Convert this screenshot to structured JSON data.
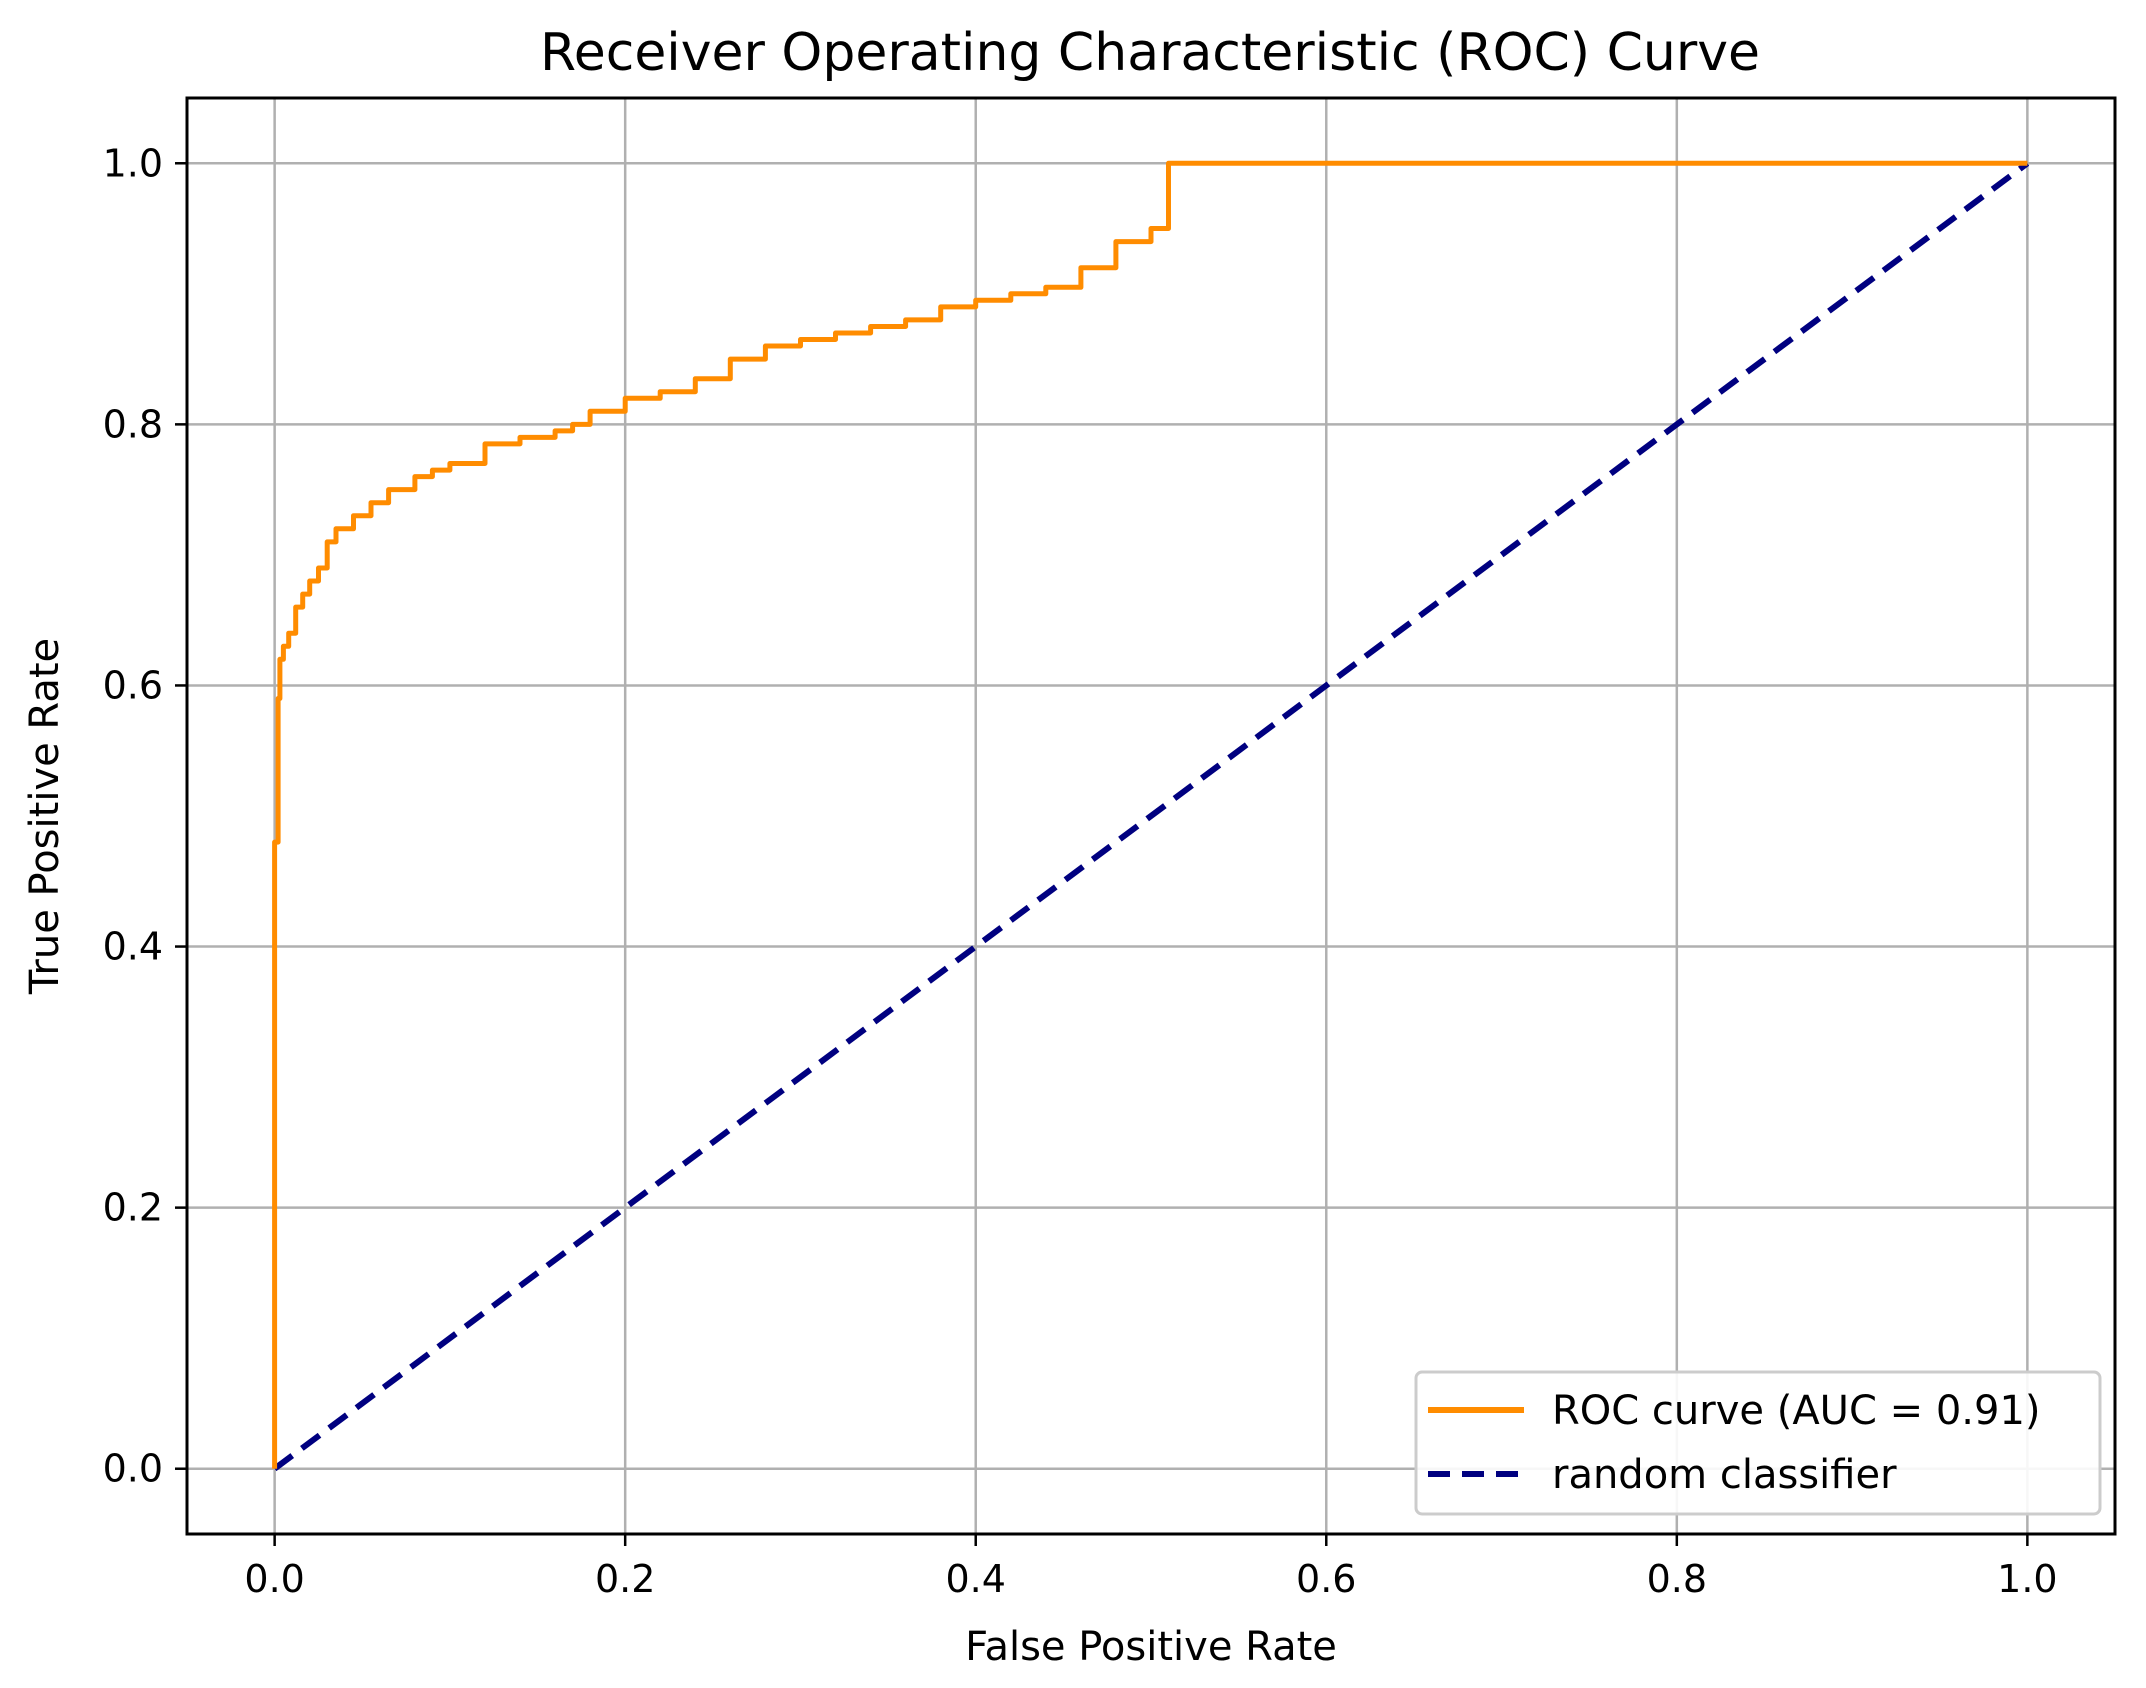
{
  "chart_data": {
    "type": "line",
    "title": "Receiver Operating Characteristic (ROC) Curve",
    "xlabel": "False Positive Rate",
    "ylabel": "True Positive Rate",
    "xlim": [
      -0.05,
      1.05
    ],
    "ylim": [
      -0.05,
      1.05
    ],
    "grid": true,
    "legend_position": "bottom-right",
    "x_ticks": [
      0.0,
      0.2,
      0.4,
      0.6,
      0.8,
      1.0
    ],
    "x_tick_labels": [
      "0.0",
      "0.2",
      "0.4",
      "0.6",
      "0.8",
      "1.0"
    ],
    "y_ticks": [
      0.0,
      0.2,
      0.4,
      0.6,
      0.8,
      1.0
    ],
    "y_tick_labels": [
      "0.0",
      "0.2",
      "0.4",
      "0.6",
      "0.8",
      "1.0"
    ],
    "series": [
      {
        "name": "ROC curve (AUC = 0.91)",
        "color": "#ff8c00",
        "style": "solid",
        "x": [
          0.0,
          0.0,
          0.002,
          0.002,
          0.003,
          0.003,
          0.005,
          0.008,
          0.012,
          0.016,
          0.02,
          0.025,
          0.03,
          0.03,
          0.035,
          0.045,
          0.055,
          0.065,
          0.08,
          0.09,
          0.1,
          0.12,
          0.14,
          0.16,
          0.17,
          0.18,
          0.2,
          0.22,
          0.24,
          0.26,
          0.28,
          0.3,
          0.32,
          0.34,
          0.36,
          0.38,
          0.4,
          0.42,
          0.44,
          0.46,
          0.48,
          0.5,
          0.51,
          0.51,
          1.0
        ],
        "y": [
          0.0,
          0.48,
          0.49,
          0.59,
          0.6,
          0.62,
          0.63,
          0.64,
          0.66,
          0.67,
          0.68,
          0.69,
          0.7,
          0.71,
          0.72,
          0.73,
          0.74,
          0.75,
          0.76,
          0.765,
          0.77,
          0.785,
          0.79,
          0.795,
          0.8,
          0.81,
          0.82,
          0.825,
          0.835,
          0.85,
          0.86,
          0.865,
          0.87,
          0.875,
          0.88,
          0.89,
          0.895,
          0.9,
          0.905,
          0.92,
          0.94,
          0.95,
          0.955,
          1.0,
          1.0
        ]
      },
      {
        "name": "random classifier",
        "color": "#000080",
        "style": "dashed",
        "x": [
          0.0,
          1.0
        ],
        "y": [
          0.0,
          1.0
        ]
      }
    ]
  }
}
